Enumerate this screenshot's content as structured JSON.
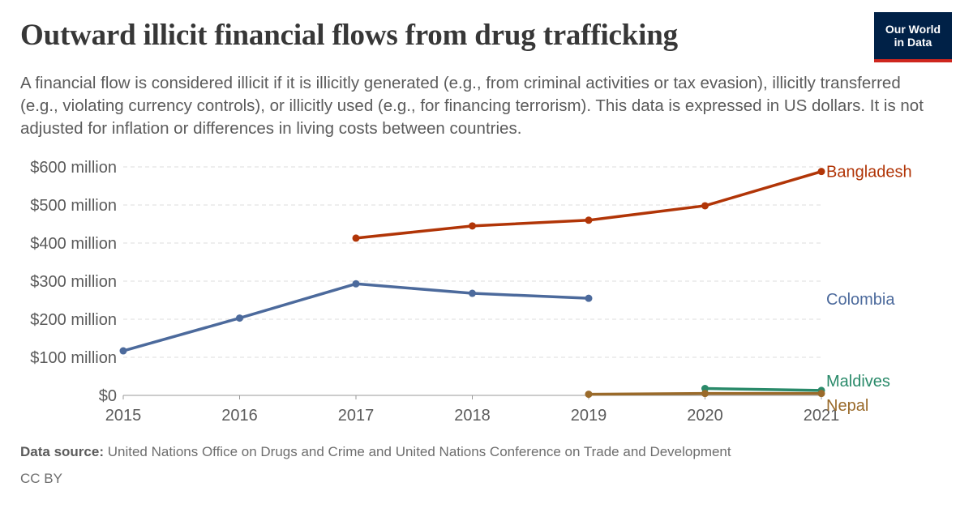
{
  "page": {
    "title": "Outward illicit financial flows from drug trafficking",
    "subtitle": "A financial flow is considered illicit if it is illicitly generated (e.g., from criminal activities or tax evasion), illicitly transferred (e.g., violating currency controls), or illicitly used (e.g., for financing terrorism). This data is expressed in US dollars. It is not adjusted for inflation or differences in living costs between countries.",
    "logo_line1": "Our World",
    "logo_line2": "in Data",
    "source_label": "Data source:",
    "source_text": "United Nations Office on Drugs and Crime and United Nations Conference on Trade and Development",
    "license": "CC BY"
  },
  "chart_data": {
    "type": "line",
    "title": "Outward illicit financial flows from drug trafficking",
    "xlabel": "",
    "ylabel": "",
    "xlim": [
      2015,
      2021
    ],
    "ylim": [
      0,
      600000000
    ],
    "grid": true,
    "legend": "inline labels at right end of lines",
    "x_ticks": [
      {
        "value": 2015,
        "label": "2015"
      },
      {
        "value": 2016,
        "label": "2016"
      },
      {
        "value": 2017,
        "label": "2017"
      },
      {
        "value": 2018,
        "label": "2018"
      },
      {
        "value": 2019,
        "label": "2019"
      },
      {
        "value": 2020,
        "label": "2020"
      },
      {
        "value": 2021,
        "label": "2021"
      }
    ],
    "y_ticks": [
      {
        "value": 0,
        "label": "$0"
      },
      {
        "value": 100000000,
        "label": "$100 million"
      },
      {
        "value": 200000000,
        "label": "$200 million"
      },
      {
        "value": 300000000,
        "label": "$300 million"
      },
      {
        "value": 400000000,
        "label": "$400 million"
      },
      {
        "value": 500000000,
        "label": "$500 million"
      },
      {
        "value": 600000000,
        "label": "$600 million"
      }
    ],
    "series": [
      {
        "name": "Bangladesh",
        "color": "#b13507",
        "x": [
          2017,
          2018,
          2019,
          2020,
          2021
        ],
        "values": [
          413000000,
          445000000,
          460000000,
          498000000,
          588000000
        ]
      },
      {
        "name": "Colombia",
        "color": "#4c6a9c",
        "x": [
          2015,
          2016,
          2017,
          2018,
          2019
        ],
        "values": [
          117000000,
          203000000,
          293000000,
          268000000,
          255000000
        ]
      },
      {
        "name": "Maldives",
        "color": "#2a8a6a",
        "x": [
          2020,
          2021
        ],
        "values": [
          18000000,
          13000000
        ]
      },
      {
        "name": "Nepal",
        "color": "#9a6a2a",
        "x": [
          2019,
          2020,
          2021
        ],
        "values": [
          3000000,
          5000000,
          5000000
        ]
      }
    ]
  }
}
